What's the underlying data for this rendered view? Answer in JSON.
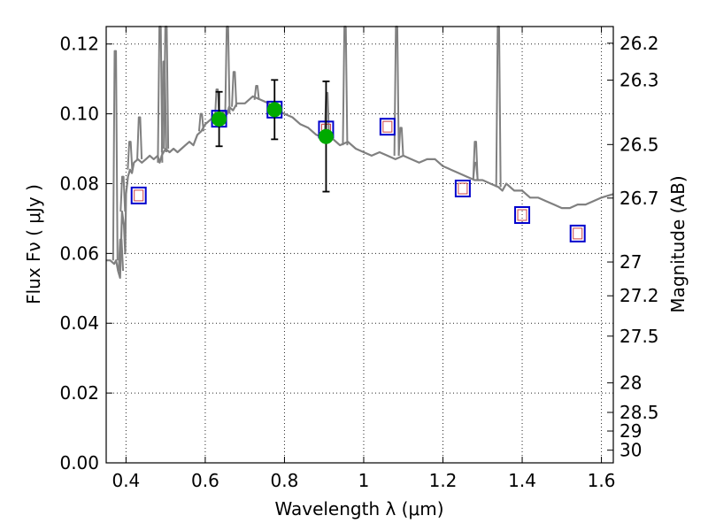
{
  "chart_data": {
    "type": "scatter",
    "xlabel": "Wavelength  λ (μm)",
    "ylabel": "Flux  Fν  ( μJy )",
    "y2label": "Magnitude (AB)",
    "xlim": [
      0.35,
      1.63
    ],
    "ylim": [
      0.0,
      0.125
    ],
    "x_ticks": [
      0.4,
      0.6,
      0.8,
      1.0,
      1.2,
      1.4,
      1.6
    ],
    "x_tick_labels": [
      "0.4",
      "0.6",
      "0.8",
      "1",
      "1.2",
      "1.4",
      "1.6"
    ],
    "y_ticks": [
      0.0,
      0.02,
      0.04,
      0.06,
      0.08,
      0.1,
      0.12
    ],
    "y_tick_labels": [
      "0.00",
      "0.02",
      "0.04",
      "0.06",
      "0.08",
      "0.10",
      "0.12"
    ],
    "mag_ticks": [
      26.2,
      26.3,
      26.5,
      26.7,
      27,
      27.2,
      27.5,
      28,
      28.5,
      29,
      30
    ],
    "mag_tick_labels": [
      "26.2",
      "26.3",
      "26.5",
      "26.7",
      "27",
      "27.2",
      "27.5",
      "28",
      "28.5",
      "29",
      "30"
    ],
    "grid": true,
    "colors": {
      "sed": "#808080",
      "observed": "#00aa00",
      "model_outer": "#0000cc",
      "model_inner": "#cc4444"
    },
    "series": [
      {
        "kind": "sed-line",
        "x": [
          0.35,
          0.36,
          0.37,
          0.375,
          0.38,
          0.385,
          0.39,
          0.395,
          0.398,
          0.4,
          0.405,
          0.41,
          0.415,
          0.42,
          0.43,
          0.44,
          0.45,
          0.46,
          0.47,
          0.48,
          0.485,
          0.49,
          0.5,
          0.51,
          0.52,
          0.53,
          0.54,
          0.55,
          0.56,
          0.57,
          0.58,
          0.59,
          0.6,
          0.62,
          0.64,
          0.65,
          0.656,
          0.66,
          0.67,
          0.68,
          0.7,
          0.72,
          0.74,
          0.76,
          0.78,
          0.8,
          0.82,
          0.84,
          0.86,
          0.88,
          0.9,
          0.92,
          0.94,
          0.96,
          0.98,
          1.0,
          1.02,
          1.04,
          1.06,
          1.08,
          1.1,
          1.12,
          1.14,
          1.16,
          1.18,
          1.2,
          1.22,
          1.24,
          1.26,
          1.28,
          1.3,
          1.32,
          1.34,
          1.35,
          1.36,
          1.38,
          1.4,
          1.42,
          1.44,
          1.46,
          1.48,
          1.5,
          1.52,
          1.54,
          1.56,
          1.58,
          1.6,
          1.63
        ],
        "y": [
          0.058,
          0.058,
          0.057,
          0.058,
          0.055,
          0.053,
          0.072,
          0.068,
          0.06,
          0.077,
          0.082,
          0.084,
          0.083,
          0.086,
          0.087,
          0.086,
          0.087,
          0.088,
          0.087,
          0.088,
          0.086,
          0.088,
          0.09,
          0.089,
          0.09,
          0.089,
          0.09,
          0.091,
          0.092,
          0.091,
          0.094,
          0.095,
          0.097,
          0.099,
          0.1,
          0.101,
          0.1,
          0.102,
          0.101,
          0.103,
          0.103,
          0.105,
          0.104,
          0.103,
          0.101,
          0.1,
          0.099,
          0.097,
          0.096,
          0.094,
          0.093,
          0.093,
          0.091,
          0.092,
          0.09,
          0.089,
          0.088,
          0.089,
          0.088,
          0.087,
          0.088,
          0.087,
          0.086,
          0.087,
          0.087,
          0.085,
          0.084,
          0.083,
          0.082,
          0.081,
          0.081,
          0.08,
          0.079,
          0.078,
          0.08,
          0.078,
          0.078,
          0.076,
          0.076,
          0.075,
          0.074,
          0.073,
          0.073,
          0.074,
          0.074,
          0.075,
          0.076,
          0.077
        ]
      },
      {
        "kind": "sed-emission-lines",
        "lines": [
          {
            "x": 0.373,
            "base": 0.058,
            "peak": 0.118
          },
          {
            "x": 0.387,
            "base": 0.055,
            "peak": 0.064
          },
          {
            "x": 0.392,
            "base": 0.072,
            "peak": 0.082
          },
          {
            "x": 0.41,
            "base": 0.084,
            "peak": 0.092
          },
          {
            "x": 0.434,
            "base": 0.087,
            "peak": 0.099
          },
          {
            "x": 0.486,
            "base": 0.086,
            "peak": 0.125
          },
          {
            "x": 0.496,
            "base": 0.089,
            "peak": 0.115
          },
          {
            "x": 0.501,
            "base": 0.09,
            "peak": 0.125
          },
          {
            "x": 0.59,
            "base": 0.095,
            "peak": 0.1
          },
          {
            "x": 0.63,
            "base": 0.098,
            "peak": 0.107
          },
          {
            "x": 0.656,
            "base": 0.1,
            "peak": 0.125
          },
          {
            "x": 0.673,
            "base": 0.102,
            "peak": 0.112
          },
          {
            "x": 0.73,
            "base": 0.104,
            "peak": 0.108
          },
          {
            "x": 0.907,
            "base": 0.093,
            "peak": 0.106
          },
          {
            "x": 0.953,
            "base": 0.091,
            "peak": 0.125
          },
          {
            "x": 1.083,
            "base": 0.088,
            "peak": 0.125
          },
          {
            "x": 1.094,
            "base": 0.088,
            "peak": 0.096
          },
          {
            "x": 1.282,
            "base": 0.081,
            "peak": 0.086
          },
          {
            "x": 1.282,
            "base": 0.081,
            "peak": 0.092
          },
          {
            "x": 1.34,
            "base": 0.079,
            "peak": 0.125
          }
        ]
      },
      {
        "kind": "observed-points",
        "x": [
          0.635,
          0.775,
          0.905
        ],
        "y": [
          0.0985,
          0.1012,
          0.0935
        ],
        "yerr": [
          0.0078,
          0.0085,
          0.0158
        ]
      },
      {
        "kind": "model-boxes",
        "x": [
          0.432,
          0.635,
          0.775,
          0.905,
          1.06,
          1.25,
          1.4,
          1.54
        ],
        "y": [
          0.0766,
          0.0986,
          0.1012,
          0.0955,
          0.0963,
          0.0786,
          0.071,
          0.0657
        ]
      }
    ]
  }
}
